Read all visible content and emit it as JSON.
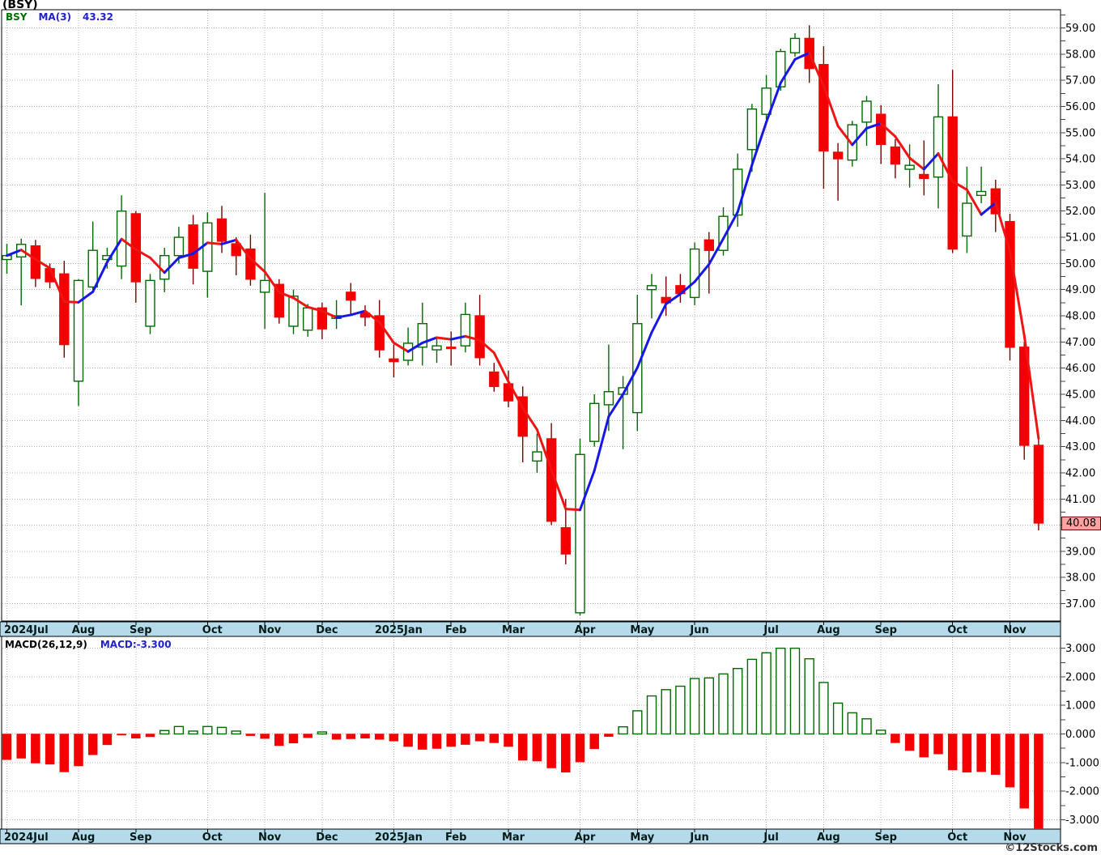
{
  "title": "(BSY)",
  "watermark": "©12Stocks.com",
  "main_legend": {
    "symbol": "BSY",
    "ma_label": "MA(3)",
    "ma_value": "43.32"
  },
  "macd_legend": {
    "label": "MACD(26,12,9)",
    "value": "MACD:-3.300"
  },
  "last_price_label": "40.08",
  "colors": {
    "up": "#006a00",
    "up_fill": "#ffffff",
    "down": "#f40000",
    "down_wick": "#7a0000",
    "ma_up": "#1717e6",
    "ma_down": "#f01414",
    "grid": "#b4b4b4",
    "frame": "#000000",
    "strip_bg": "#b5dae9",
    "axis_text": "#000000",
    "label_box_bg": "#ffa2a2",
    "label_box_border": "#7a0000"
  },
  "chart_data": {
    "type": "candlestick",
    "symbol": "BSY",
    "interval": "weekly",
    "title": "(BSY)",
    "legend_position": "top-left",
    "grid": true,
    "columns": [
      "week_start",
      "open",
      "high",
      "low",
      "close",
      "macd"
    ],
    "rows": [
      [
        "2024-07-01",
        50.15,
        50.75,
        49.6,
        50.3,
        -0.9
      ],
      [
        "2024-07-08",
        50.25,
        50.95,
        48.4,
        50.73,
        -0.85
      ],
      [
        "2024-07-15",
        50.67,
        50.9,
        49.1,
        49.43,
        -1.02
      ],
      [
        "2024-07-22",
        49.8,
        50.0,
        49.05,
        49.3,
        -1.06
      ],
      [
        "2024-07-29",
        49.6,
        50.1,
        46.4,
        46.9,
        -1.33
      ],
      [
        "2024-08-05",
        45.5,
        49.4,
        44.55,
        49.35,
        -1.12
      ],
      [
        "2024-08-12",
        49.1,
        51.6,
        49.0,
        50.5,
        -0.73
      ],
      [
        "2024-08-19",
        50.15,
        50.6,
        49.8,
        50.3,
        -0.38
      ],
      [
        "2024-08-26",
        49.9,
        52.6,
        49.4,
        52.0,
        -0.03
      ],
      [
        "2024-09-02",
        51.9,
        52.0,
        48.5,
        49.3,
        -0.15
      ],
      [
        "2024-09-09",
        47.6,
        49.6,
        47.3,
        49.35,
        -0.1
      ],
      [
        "2024-09-16",
        49.4,
        50.6,
        48.9,
        50.3,
        0.12
      ],
      [
        "2024-09-23",
        50.3,
        51.4,
        50.0,
        51.0,
        0.26
      ],
      [
        "2024-09-30",
        51.47,
        51.85,
        49.2,
        49.82,
        0.1
      ],
      [
        "2024-10-07",
        49.7,
        51.95,
        48.7,
        51.55,
        0.26
      ],
      [
        "2024-10-14",
        51.7,
        52.2,
        50.4,
        50.85,
        0.23
      ],
      [
        "2024-10-21",
        50.75,
        51.0,
        49.55,
        50.3,
        0.1
      ],
      [
        "2024-10-28",
        50.55,
        51.1,
        49.15,
        49.4,
        -0.06
      ],
      [
        "2024-11-04",
        48.9,
        52.7,
        47.5,
        49.35,
        -0.16
      ],
      [
        "2024-11-11",
        49.2,
        49.4,
        47.7,
        47.95,
        -0.41
      ],
      [
        "2024-11-18",
        47.6,
        49.0,
        47.3,
        48.75,
        -0.32
      ],
      [
        "2024-11-25",
        47.45,
        48.45,
        47.2,
        48.3,
        -0.13
      ],
      [
        "2024-12-02",
        48.3,
        48.5,
        47.1,
        47.5,
        0.07
      ],
      [
        "2024-12-09",
        47.9,
        48.6,
        47.5,
        48.0,
        -0.19
      ],
      [
        "2024-12-16",
        48.9,
        49.25,
        48.05,
        48.6,
        -0.17
      ],
      [
        "2024-12-23",
        48.1,
        48.4,
        47.6,
        47.95,
        -0.15
      ],
      [
        "2024-12-30",
        48.0,
        48.6,
        46.4,
        46.7,
        -0.19
      ],
      [
        "2025-01-06",
        46.35,
        46.9,
        45.65,
        46.25,
        -0.25
      ],
      [
        "2025-01-13",
        46.3,
        47.55,
        46.1,
        46.95,
        -0.44
      ],
      [
        "2025-01-20",
        46.8,
        48.5,
        46.1,
        47.7,
        -0.54
      ],
      [
        "2025-01-27",
        46.7,
        47.2,
        46.2,
        46.85,
        -0.51
      ],
      [
        "2025-02-03",
        46.8,
        47.4,
        46.1,
        46.75,
        -0.44
      ],
      [
        "2025-02-10",
        46.85,
        48.5,
        46.6,
        48.05,
        -0.37
      ],
      [
        "2025-02-17",
        48.0,
        48.8,
        46.1,
        46.4,
        -0.25
      ],
      [
        "2025-02-24",
        45.85,
        46.2,
        45.1,
        45.3,
        -0.31
      ],
      [
        "2025-03-03",
        45.4,
        45.9,
        44.5,
        44.75,
        -0.44
      ],
      [
        "2025-03-10",
        44.9,
        45.3,
        42.4,
        43.4,
        -0.92
      ],
      [
        "2025-03-17",
        42.45,
        43.5,
        42.0,
        42.8,
        -0.95
      ],
      [
        "2025-03-24",
        43.3,
        43.9,
        40.0,
        40.15,
        -1.19
      ],
      [
        "2025-03-31",
        39.9,
        41.0,
        38.5,
        38.9,
        -1.34
      ],
      [
        "2025-04-07",
        36.65,
        43.3,
        36.55,
        42.7,
        -0.98
      ],
      [
        "2025-04-14",
        43.2,
        45.0,
        43.0,
        44.65,
        -0.52
      ],
      [
        "2025-04-21",
        44.6,
        46.9,
        43.6,
        45.1,
        -0.09
      ],
      [
        "2025-04-28",
        45.0,
        45.7,
        42.9,
        45.25,
        0.25
      ],
      [
        "2025-05-05",
        44.3,
        48.8,
        43.6,
        47.7,
        0.81
      ],
      [
        "2025-05-12",
        49.0,
        49.6,
        47.9,
        49.15,
        1.33
      ],
      [
        "2025-05-19",
        48.7,
        49.5,
        48.0,
        48.5,
        1.55
      ],
      [
        "2025-05-26",
        49.15,
        49.6,
        48.5,
        48.85,
        1.67
      ],
      [
        "2025-06-02",
        48.7,
        50.8,
        48.4,
        50.55,
        1.94
      ],
      [
        "2025-06-09",
        50.9,
        51.2,
        48.85,
        50.5,
        1.96
      ],
      [
        "2025-06-16",
        50.5,
        52.15,
        50.3,
        51.8,
        2.1
      ],
      [
        "2025-06-23",
        51.85,
        54.2,
        51.4,
        53.6,
        2.29
      ],
      [
        "2025-06-30",
        54.35,
        56.1,
        53.5,
        55.9,
        2.61
      ],
      [
        "2025-07-07",
        55.7,
        57.2,
        55.5,
        56.7,
        2.84
      ],
      [
        "2025-07-14",
        56.75,
        58.2,
        56.6,
        58.1,
        3.0
      ],
      [
        "2025-07-21",
        58.05,
        58.8,
        57.9,
        58.6,
        3.0
      ],
      [
        "2025-07-28",
        58.6,
        59.1,
        56.9,
        57.45,
        2.63
      ],
      [
        "2025-08-04",
        57.6,
        58.3,
        52.85,
        54.3,
        1.8
      ],
      [
        "2025-08-11",
        54.25,
        54.6,
        52.4,
        54.0,
        1.08
      ],
      [
        "2025-08-18",
        53.95,
        55.45,
        53.7,
        55.3,
        0.74
      ],
      [
        "2025-08-25",
        55.4,
        56.4,
        54.5,
        56.2,
        0.53
      ],
      [
        "2025-09-01",
        55.7,
        56.05,
        53.8,
        54.55,
        0.13
      ],
      [
        "2025-09-08",
        54.45,
        54.75,
        53.25,
        53.8,
        -0.31
      ],
      [
        "2025-09-15",
        53.6,
        54.55,
        52.9,
        53.75,
        -0.58
      ],
      [
        "2025-09-22",
        53.4,
        54.7,
        52.6,
        53.25,
        -0.81
      ],
      [
        "2025-09-29",
        53.3,
        56.85,
        52.1,
        55.6,
        -0.7
      ],
      [
        "2025-10-06",
        55.6,
        57.4,
        50.4,
        50.55,
        -1.26
      ],
      [
        "2025-10-13",
        51.05,
        53.7,
        50.4,
        52.3,
        -1.34
      ],
      [
        "2025-10-20",
        52.6,
        53.7,
        52.3,
        52.75,
        -1.32
      ],
      [
        "2025-10-27",
        52.85,
        53.2,
        51.2,
        51.9,
        -1.42
      ],
      [
        "2025-11-03",
        51.6,
        51.9,
        46.3,
        46.8,
        -1.86
      ],
      [
        "2025-11-10",
        46.8,
        47.0,
        42.5,
        43.05,
        -2.6
      ],
      [
        "2025-11-17",
        43.05,
        43.3,
        39.8,
        40.08,
        -3.3
      ]
    ],
    "last_close": 40.08,
    "ma_overlay": {
      "label": "MA(3)",
      "window": 3,
      "last_value": 43.32
    },
    "macd_series": {
      "label": "MACD(26,12,9)",
      "last_value": -3.3
    },
    "price_axis": {
      "side": "right",
      "min": 36.33,
      "max": 59.7,
      "grid_step": 1.0,
      "tick_step": 0.5,
      "labels": [
        "59.00",
        "58.00",
        "57.00",
        "56.00",
        "55.00",
        "54.00",
        "53.00",
        "52.00",
        "51.00",
        "50.00",
        "49.00",
        "48.00",
        "47.00",
        "46.00",
        "45.00",
        "44.00",
        "43.00",
        "42.00",
        "41.00",
        "40.00",
        "39.00",
        "38.00",
        "37.00"
      ]
    },
    "macd_axis": {
      "side": "right",
      "min": -3.37,
      "max": 3.42,
      "grid_step": 1.0,
      "tick_step": 0.5,
      "labels": [
        "3.000",
        "2.000",
        "1.000",
        "0.000",
        "-1.000",
        "-2.000",
        "-3.000"
      ]
    },
    "months": [
      {
        "label": "2024Jul",
        "index": 0
      },
      {
        "label": "Aug",
        "index": 5
      },
      {
        "label": "Sep",
        "index": 9
      },
      {
        "label": "Oct",
        "index": 14
      },
      {
        "label": "Nov",
        "index": 18
      },
      {
        "label": "Dec",
        "index": 22
      },
      {
        "label": "2025Jan",
        "index": 27
      },
      {
        "label": "Feb",
        "index": 31
      },
      {
        "label": "Mar",
        "index": 35
      },
      {
        "label": "Apr",
        "index": 40
      },
      {
        "label": "May",
        "index": 44
      },
      {
        "label": "Jun",
        "index": 48
      },
      {
        "label": "Jul",
        "index": 53
      },
      {
        "label": "Aug",
        "index": 57
      },
      {
        "label": "Sep",
        "index": 61
      },
      {
        "label": "Oct",
        "index": 66
      },
      {
        "label": "Nov",
        "index": 70
      }
    ]
  }
}
